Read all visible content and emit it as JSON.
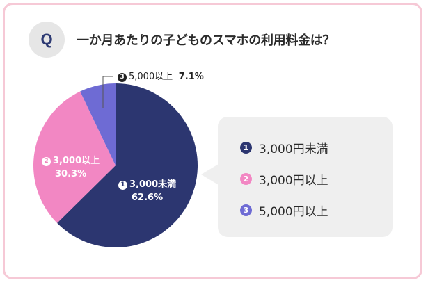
{
  "question": {
    "badge": "Q",
    "text": "一か月あたりの子どものスマホの利用料金は？"
  },
  "chart_data": {
    "type": "pie",
    "title": "",
    "slices": [
      {
        "marker": "1",
        "label": "3,000未満",
        "percent_label": "62.6%",
        "value": 62.6,
        "color": "#2c3670"
      },
      {
        "marker": "2",
        "label": "3,000以上",
        "percent_label": "30.3%",
        "value": 30.3,
        "color": "#f287c3"
      },
      {
        "marker": "3",
        "label": "5,000以上",
        "percent_label": "7.1%",
        "value": 7.1,
        "color": "#6e6bd4"
      }
    ],
    "legend": [
      {
        "marker": "1",
        "label": "3,000円未満",
        "color": "#2c3670"
      },
      {
        "marker": "2",
        "label": "3,000円以上",
        "color": "#f287c3"
      },
      {
        "marker": "3",
        "label": "5,000円以上",
        "color": "#6e6bd4"
      }
    ],
    "legend_position": "right"
  }
}
